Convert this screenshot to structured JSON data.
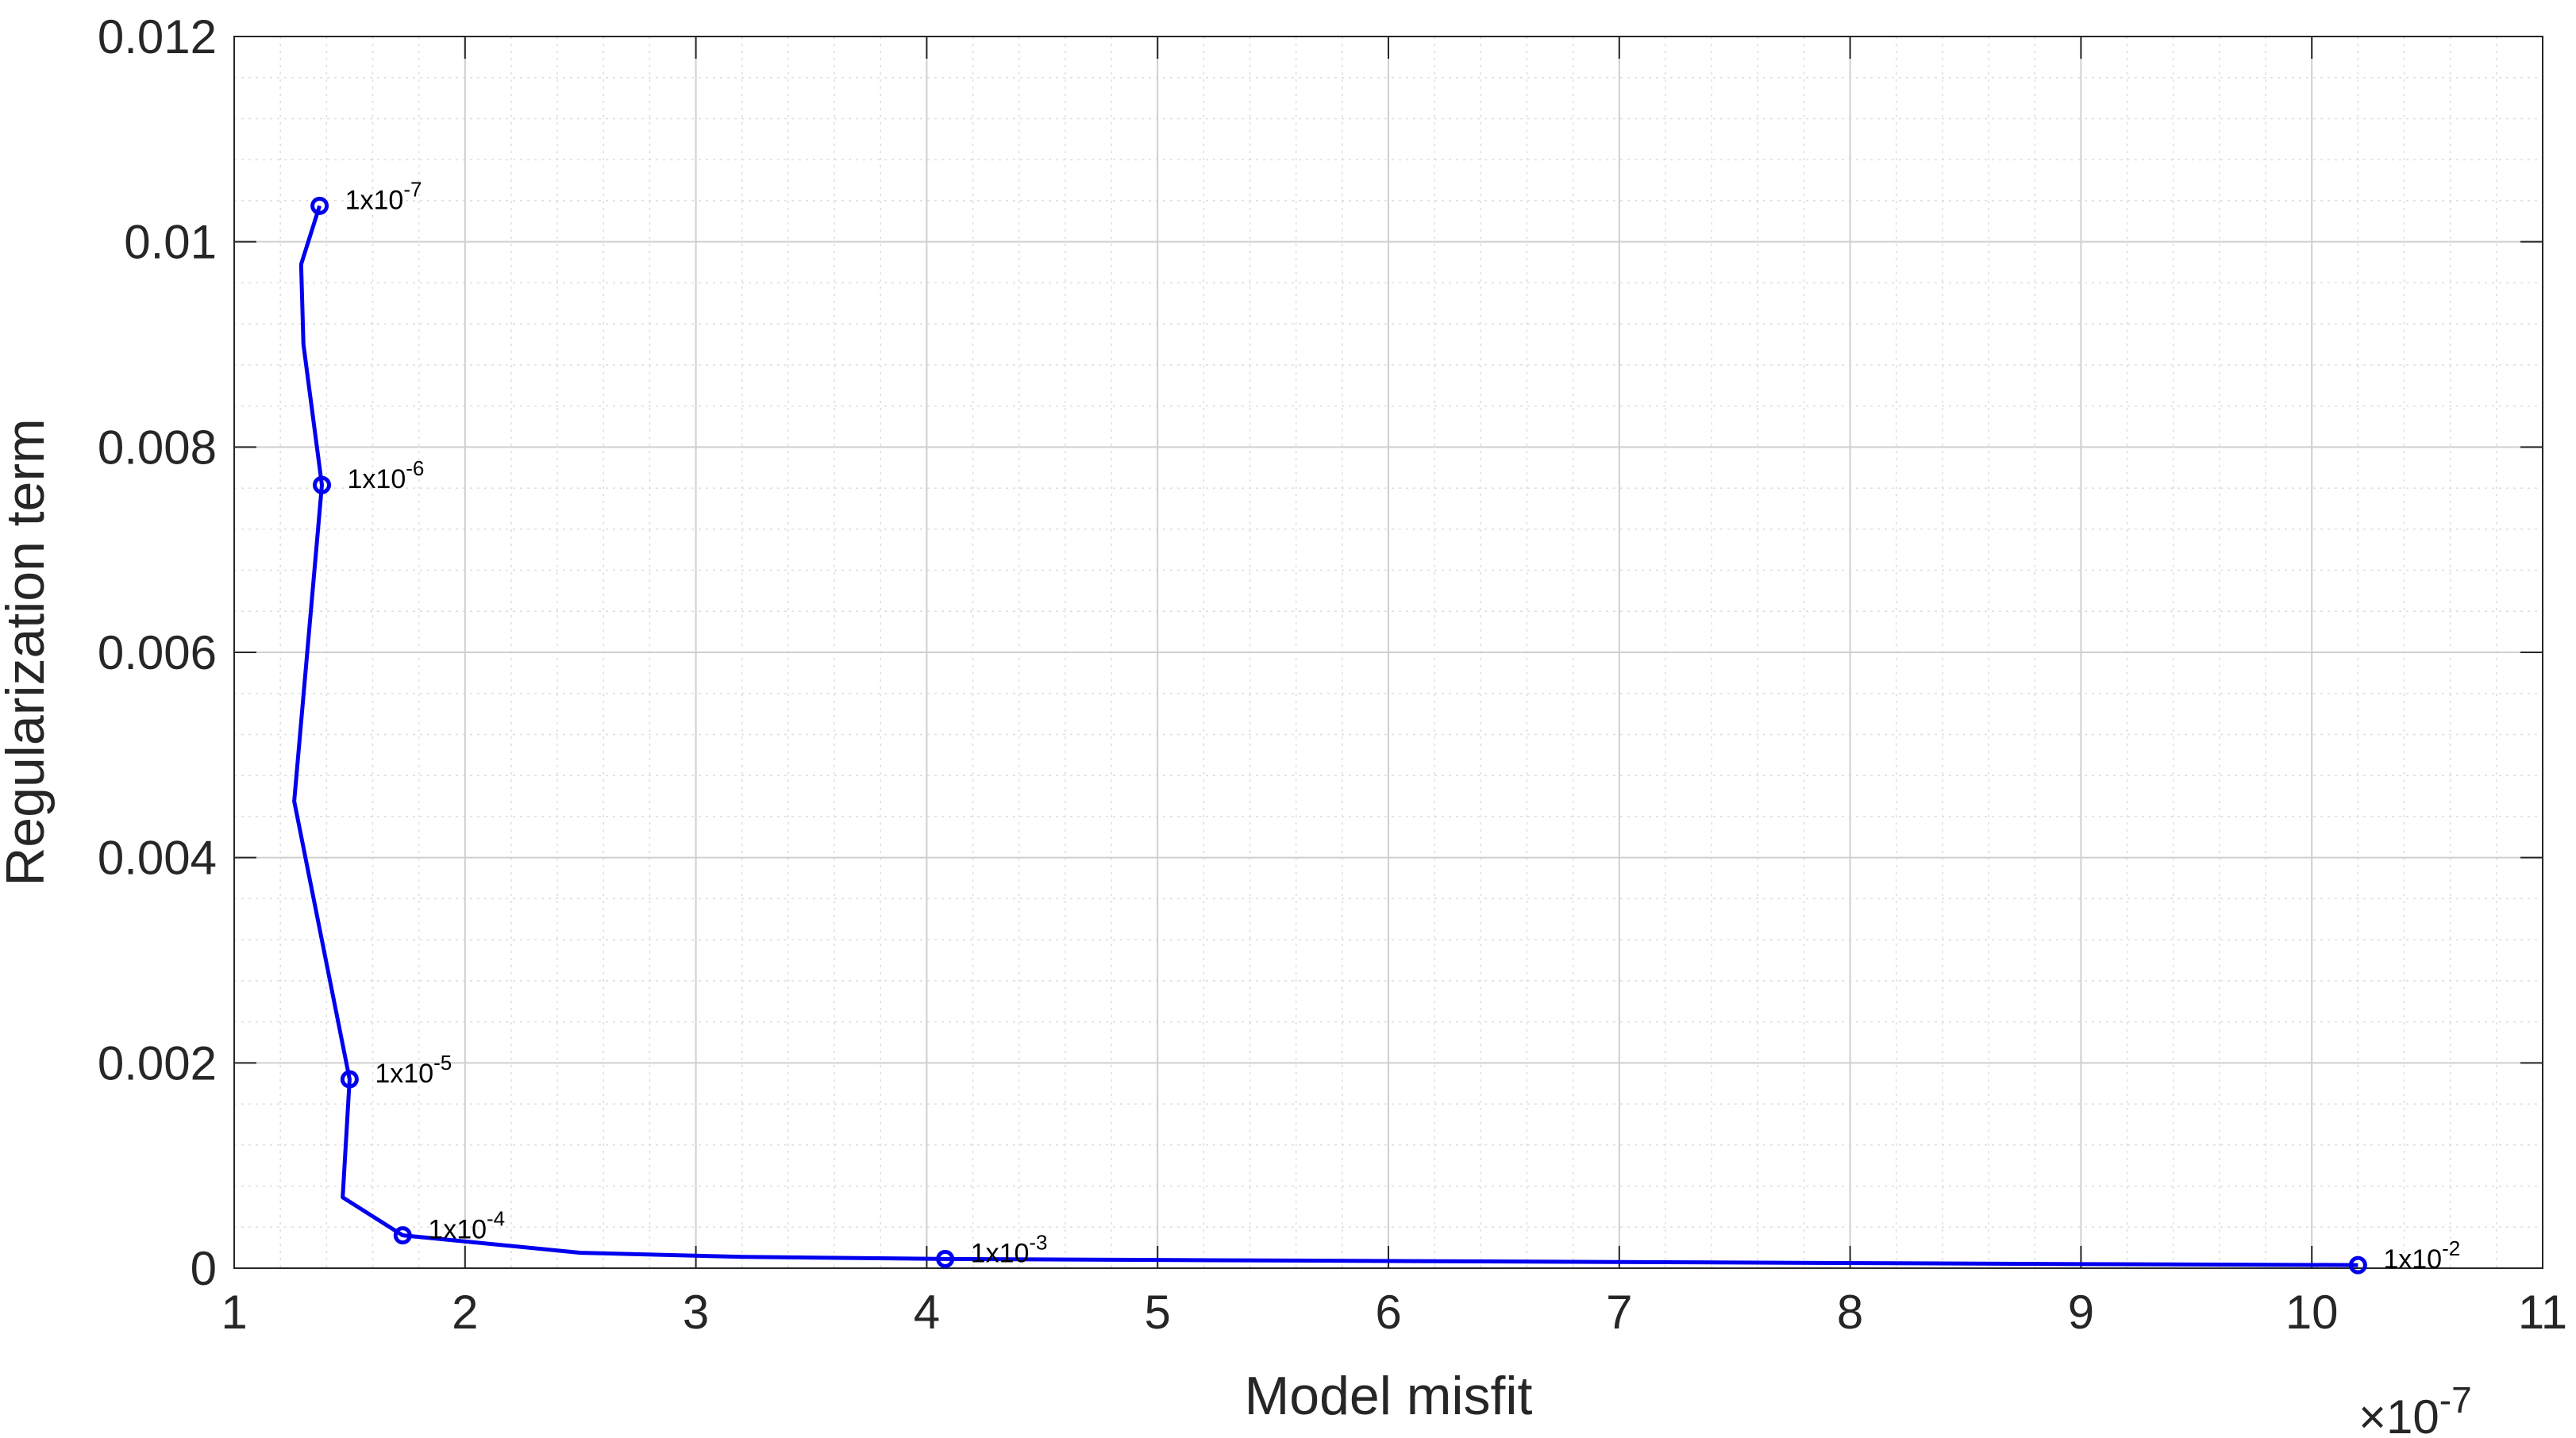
{
  "chart_data": {
    "type": "line",
    "title": "",
    "xlabel": "Model misfit",
    "ylabel": "Regularization term",
    "x_multiplier_label": "×10",
    "x_multiplier_exponent": "-7",
    "xlim": [
      1,
      11
    ],
    "ylim": [
      0,
      0.012
    ],
    "x_ticks": [
      1,
      2,
      3,
      4,
      5,
      6,
      7,
      8,
      9,
      10,
      11
    ],
    "x_tick_labels": [
      "1",
      "2",
      "3",
      "4",
      "5",
      "6",
      "7",
      "8",
      "9",
      "10",
      "11"
    ],
    "y_ticks": [
      0,
      0.002,
      0.004,
      0.006,
      0.008,
      0.01,
      0.012
    ],
    "y_tick_labels": [
      "0",
      "0.002",
      "0.004",
      "0.006",
      "0.008",
      "0.01",
      "0.012"
    ],
    "grid": true,
    "minor_grid": true,
    "series": [
      {
        "color": "#0000ee",
        "x": [
          1.37,
          1.29,
          1.3,
          1.38,
          1.26,
          1.5,
          1.47,
          1.73,
          2.5,
          3.2,
          4.08,
          5.0,
          7.0,
          9.0,
          10.2
        ],
        "y": [
          0.01035,
          0.00978,
          0.009,
          0.00763,
          0.00455,
          0.00184,
          0.00069,
          0.00032,
          0.00015,
          0.00011,
          9e-05,
          8e-05,
          6e-05,
          4e-05,
          3e-05
        ]
      }
    ],
    "markers": [
      {
        "x": 1.37,
        "y": 0.01035,
        "label_base": "1x10",
        "label_exp": "-7"
      },
      {
        "x": 1.38,
        "y": 0.00763,
        "label_base": "1x10",
        "label_exp": "-6"
      },
      {
        "x": 1.5,
        "y": 0.00184,
        "label_base": "1x10",
        "label_exp": "-5"
      },
      {
        "x": 1.73,
        "y": 0.00032,
        "label_base": "1x10",
        "label_exp": "-4"
      },
      {
        "x": 4.08,
        "y": 9e-05,
        "label_base": "1x10",
        "label_exp": "-3"
      },
      {
        "x": 10.2,
        "y": 3e-05,
        "label_base": "1x10",
        "label_exp": "-2"
      }
    ]
  }
}
